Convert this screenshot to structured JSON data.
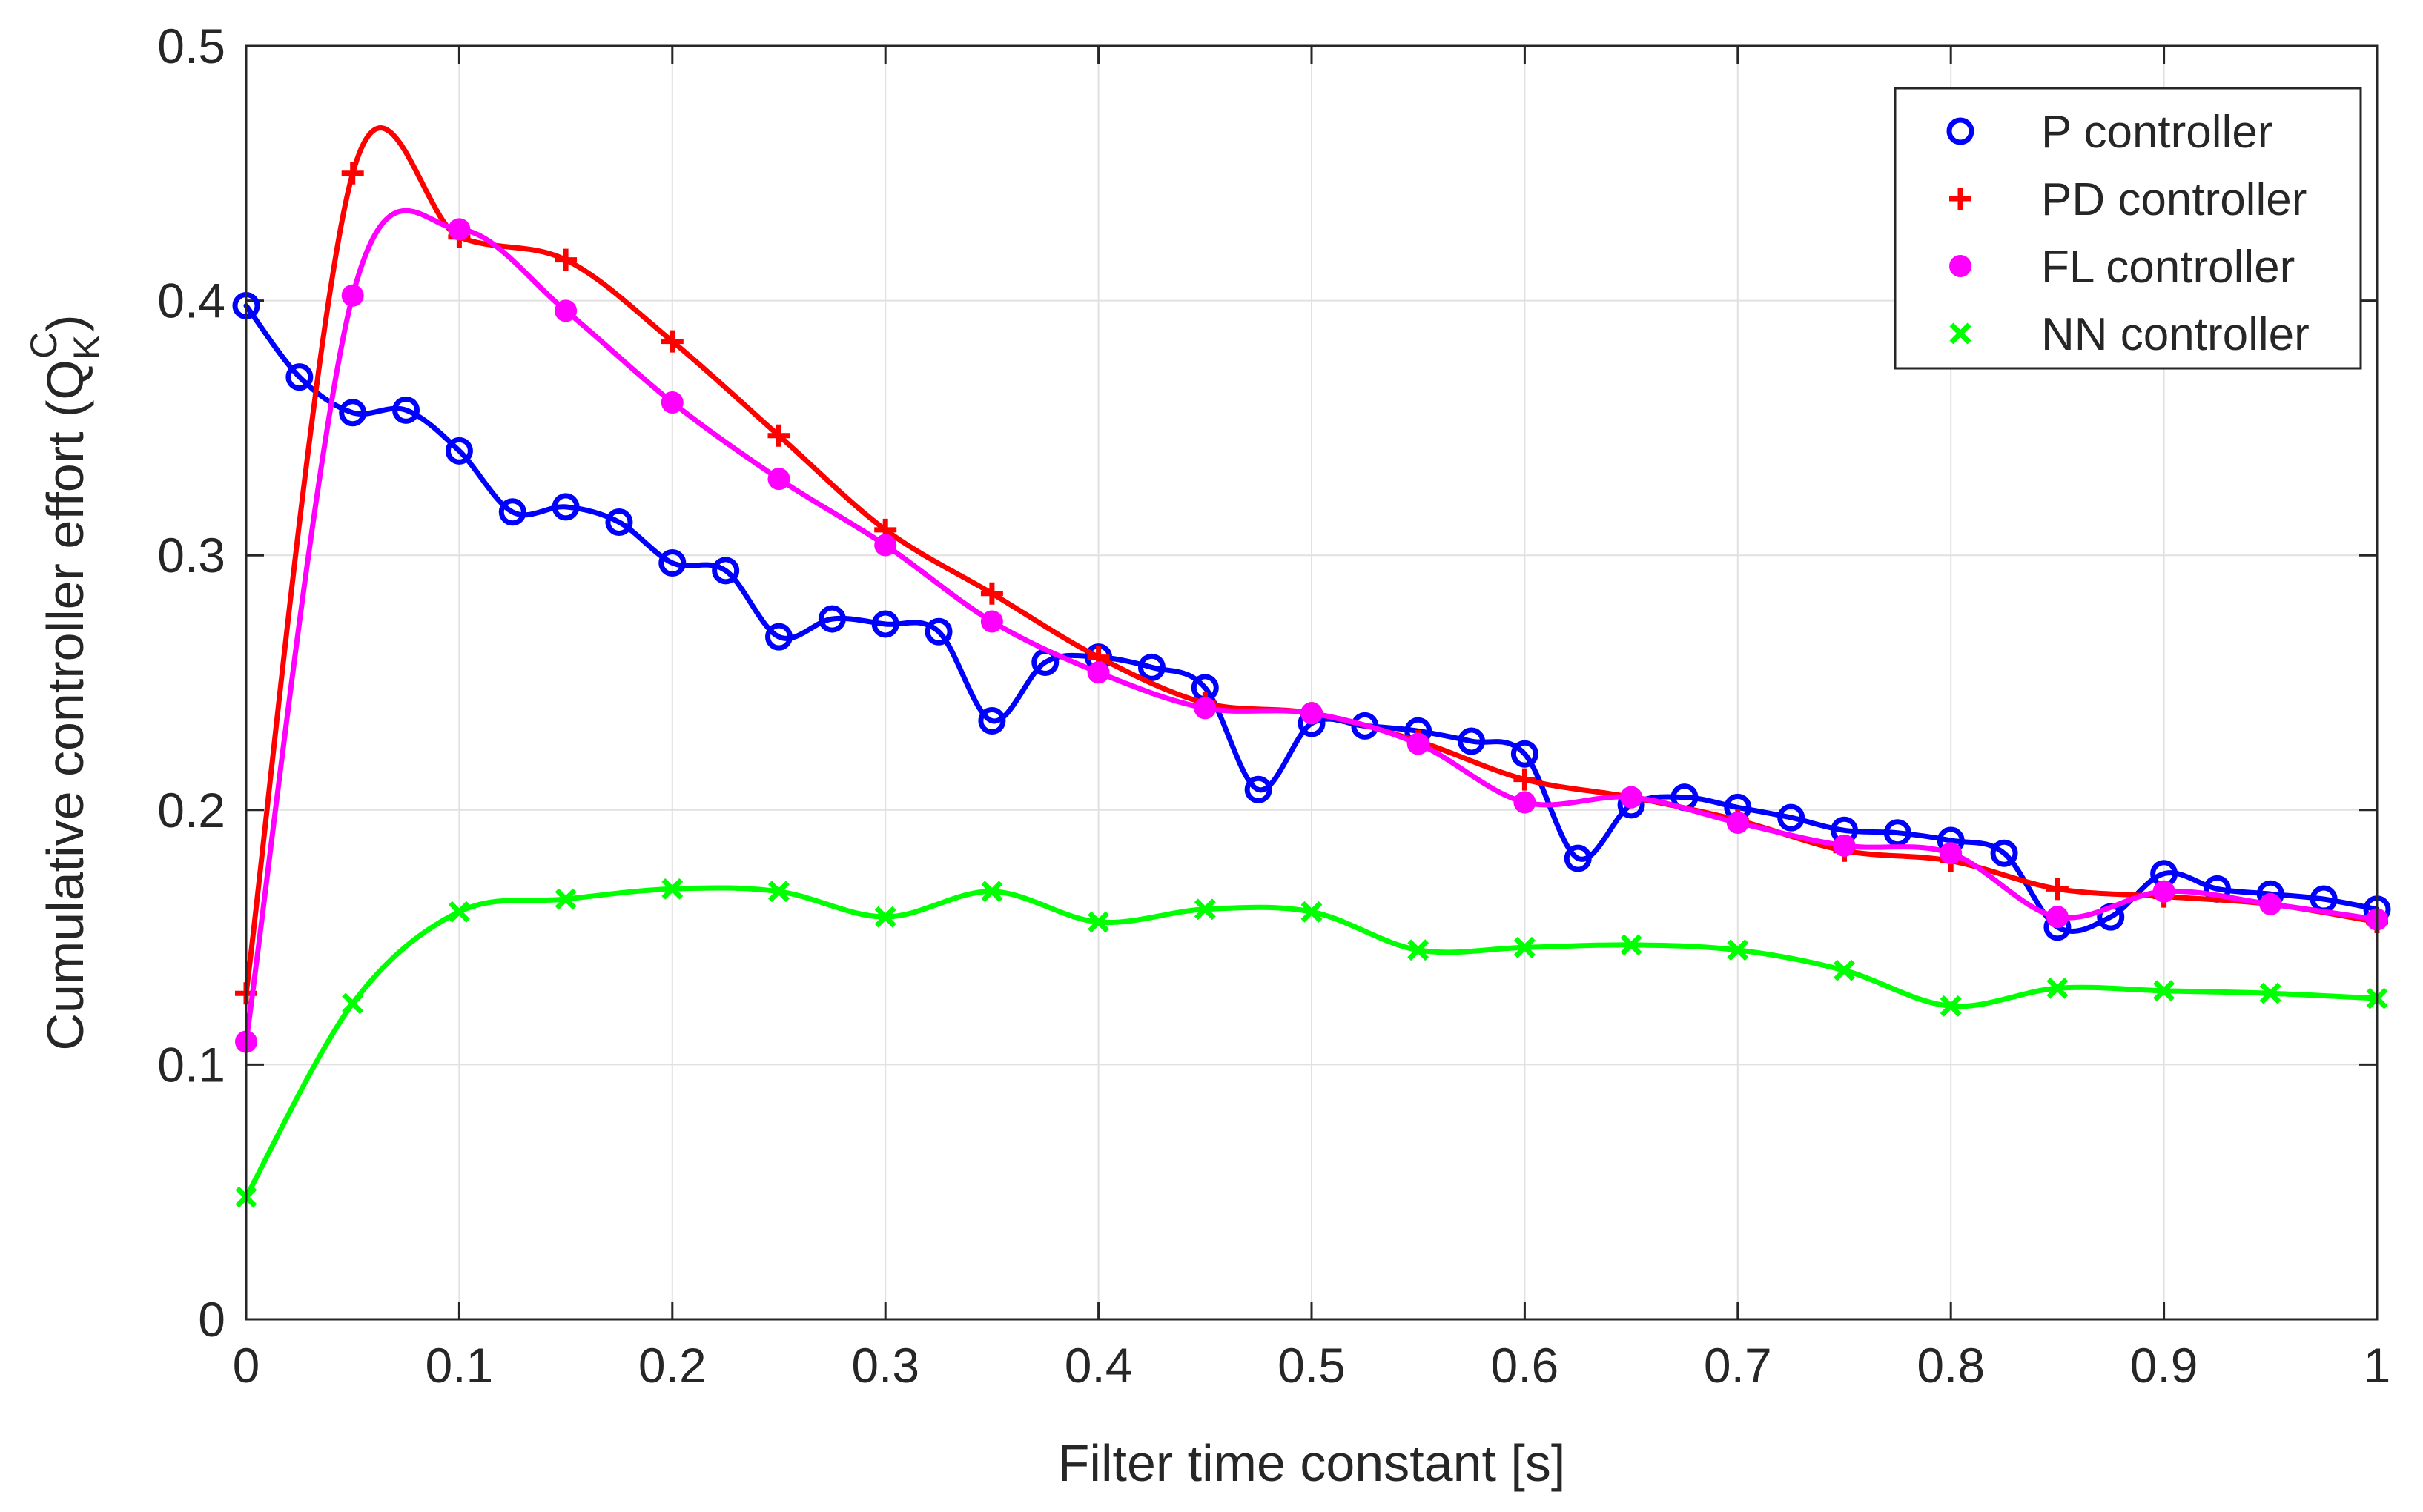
{
  "chart_data": {
    "type": "line",
    "title": "",
    "xlabel": "Filter time constant [s]",
    "ylabel": {
      "main": "Cumulative controller effort (Q",
      "sub": "K",
      "sup": "C",
      "end": ")"
    },
    "xlim": [
      0,
      1
    ],
    "ylim": [
      0,
      0.5
    ],
    "xticks": [
      0,
      0.1,
      0.2,
      0.3,
      0.4,
      0.5,
      0.6,
      0.7,
      0.8,
      0.9,
      1
    ],
    "xtick_labels": [
      "0",
      "0.1",
      "0.2",
      "0.3",
      "0.4",
      "0.5",
      "0.6",
      "0.7",
      "0.8",
      "0.9",
      "1"
    ],
    "yticks": [
      0,
      0.1,
      0.2,
      0.3,
      0.4,
      0.5
    ],
    "ytick_labels": [
      "0",
      "0.1",
      "0.2",
      "0.3",
      "0.4",
      "0.5"
    ],
    "grid": true,
    "legend_position": "top-right",
    "series": [
      {
        "name": "P controller",
        "color": "#0000ff",
        "marker": "circle",
        "x": [
          0,
          0.025,
          0.05,
          0.075,
          0.1,
          0.125,
          0.15,
          0.175,
          0.2,
          0.225,
          0.25,
          0.275,
          0.3,
          0.325,
          0.35,
          0.375,
          0.4,
          0.425,
          0.45,
          0.475,
          0.5,
          0.525,
          0.55,
          0.575,
          0.6,
          0.625,
          0.65,
          0.675,
          0.7,
          0.725,
          0.75,
          0.775,
          0.8,
          0.825,
          0.85,
          0.875,
          0.9,
          0.925,
          0.95,
          0.975,
          1
        ],
        "y": [
          0.398,
          0.37,
          0.356,
          0.357,
          0.341,
          0.317,
          0.319,
          0.313,
          0.297,
          0.294,
          0.268,
          0.275,
          0.273,
          0.27,
          0.235,
          0.258,
          0.26,
          0.256,
          0.248,
          0.208,
          0.234,
          0.233,
          0.231,
          0.227,
          0.222,
          0.181,
          0.202,
          0.205,
          0.201,
          0.197,
          0.192,
          0.191,
          0.188,
          0.183,
          0.154,
          0.158,
          0.175,
          0.169,
          0.167,
          0.165,
          0.161
        ]
      },
      {
        "name": "PD controller",
        "color": "#ff0000",
        "marker": "plus",
        "x": [
          0,
          0.05,
          0.1,
          0.15,
          0.2,
          0.25,
          0.3,
          0.35,
          0.4,
          0.45,
          0.5,
          0.55,
          0.6,
          0.65,
          0.7,
          0.75,
          0.8,
          0.85,
          0.9,
          0.95,
          1
        ],
        "y": [
          0.128,
          0.45,
          0.425,
          0.416,
          0.384,
          0.347,
          0.31,
          0.285,
          0.26,
          0.242,
          0.238,
          0.227,
          0.212,
          0.205,
          0.196,
          0.184,
          0.18,
          0.169,
          0.166,
          0.163,
          0.156
        ]
      },
      {
        "name": "FL controller",
        "color": "#ff00ff",
        "marker": "dot",
        "x": [
          0,
          0.05,
          0.1,
          0.15,
          0.2,
          0.25,
          0.3,
          0.35,
          0.4,
          0.45,
          0.5,
          0.55,
          0.6,
          0.65,
          0.7,
          0.75,
          0.8,
          0.85,
          0.9,
          0.95,
          1
        ],
        "y": [
          0.109,
          0.402,
          0.428,
          0.396,
          0.36,
          0.33,
          0.304,
          0.274,
          0.254,
          0.24,
          0.238,
          0.226,
          0.203,
          0.205,
          0.195,
          0.186,
          0.183,
          0.158,
          0.168,
          0.163,
          0.157
        ]
      },
      {
        "name": "NN controller",
        "color": "#00ff00",
        "marker": "x",
        "x": [
          0,
          0.05,
          0.1,
          0.15,
          0.2,
          0.25,
          0.3,
          0.35,
          0.4,
          0.45,
          0.5,
          0.55,
          0.6,
          0.65,
          0.7,
          0.75,
          0.8,
          0.85,
          0.9,
          0.95,
          1
        ],
        "y": [
          0.048,
          0.124,
          0.16,
          0.165,
          0.169,
          0.168,
          0.158,
          0.168,
          0.156,
          0.161,
          0.16,
          0.145,
          0.146,
          0.147,
          0.145,
          0.137,
          0.123,
          0.13,
          0.129,
          0.128,
          0.126
        ]
      }
    ]
  }
}
